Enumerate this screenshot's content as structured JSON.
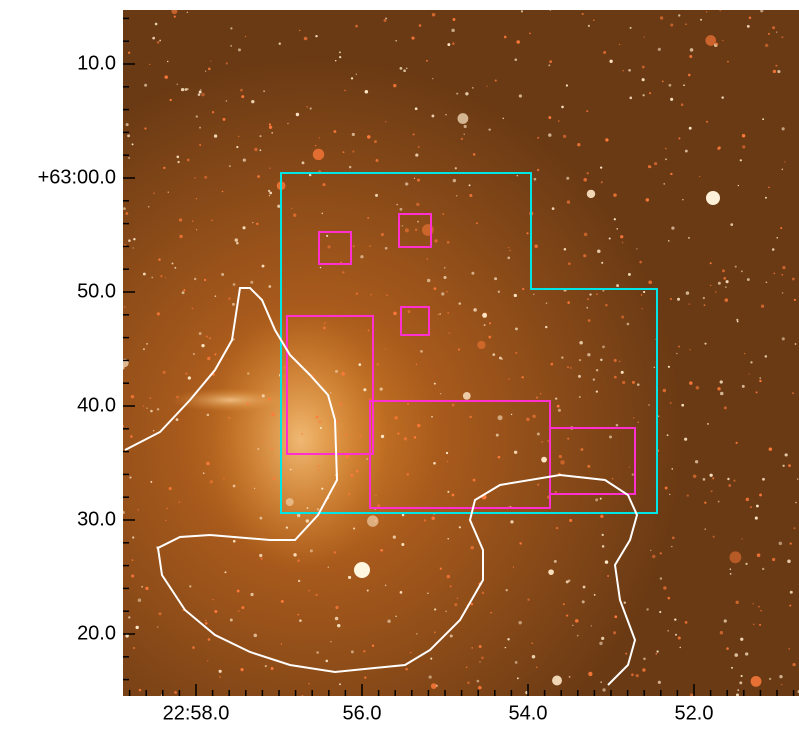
{
  "y_axis": {
    "labels": [
      "10.0",
      "+63:00.0",
      "50.0",
      "40.0",
      "30.0",
      "20.0"
    ]
  },
  "x_axis": {
    "labels": [
      "22:58.0",
      "56.0",
      "54.0",
      "52.0"
    ]
  }
}
